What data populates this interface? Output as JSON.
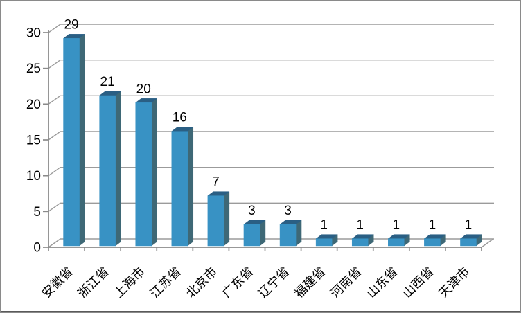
{
  "chart_data": {
    "type": "bar",
    "style": "3d-column",
    "title": "",
    "xlabel": "",
    "ylabel": "",
    "legend": false,
    "grid": true,
    "categories": [
      "安徽省",
      "浙江省",
      "上海市",
      "江苏省",
      "北京市",
      "广东省",
      "辽宁省",
      "福建省",
      "河南省",
      "山东省",
      "山西省",
      "天津市"
    ],
    "values": [
      29,
      21,
      20,
      16,
      7,
      3,
      3,
      1,
      1,
      1,
      1,
      1
    ],
    "data_labels": [
      "29",
      "21",
      "20",
      "16",
      "7",
      "3",
      "3",
      "1",
      "1",
      "1",
      "1",
      "1"
    ],
    "y_ticks": [
      0,
      5,
      10,
      15,
      20,
      25,
      30
    ],
    "y_tick_labels": [
      "0",
      "5",
      "10",
      "15",
      "20",
      "25",
      "30"
    ],
    "ylim": [
      0,
      30
    ],
    "colors": {
      "bar_front": "#3892C4",
      "bar_top": "#2A5F84",
      "bar_side": "#3E6876",
      "gridline": "#9B9B9B",
      "axis": "#8A8A8A",
      "text": "#000000",
      "background": "#FFFFFF",
      "frame_border": "#8A8A8A"
    }
  }
}
